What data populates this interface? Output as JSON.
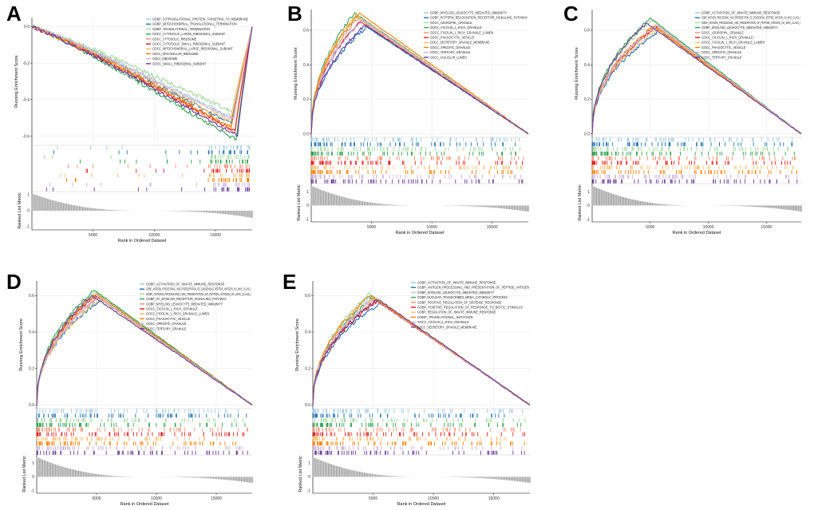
{
  "figure": {
    "background": "#ffffff"
  },
  "chart_data": [
    {
      "panel": "A",
      "type": "line",
      "subtype": "gsea-multi",
      "ylabel": "Running Enrichment Score",
      "xlabel": "Rank in Ordered Dataset",
      "metric_label": "Ranked List Metric",
      "xlim": [
        0,
        18000
      ],
      "ylim": [
        -0.65,
        0.05
      ],
      "yticks": [
        0.0,
        -0.2,
        -0.4,
        -0.6
      ],
      "yticklabels": [
        "0.0",
        "-0.2",
        "-0.4",
        "-0.6"
      ],
      "xticks": [
        5000,
        10000,
        15000
      ],
      "xticklabels": [
        "5000",
        "10000",
        "15000"
      ],
      "metric_ylim": [
        -1.2,
        1.2
      ],
      "metric_yticks": [
        1,
        0,
        -1
      ],
      "metric_yticklabels": [
        "1",
        "0",
        "-1"
      ],
      "series": [
        {
          "name": "GOBP_COTRANSLATIONAL_PROTEIN_TARGETING_TO_MEMBRANE",
          "color": "#9ecae1",
          "peak": -0.5,
          "peak_x": 16400
        },
        {
          "name": "GOBP_MITOCHONDRIAL_TRANSLATIONAL_TERMINATION",
          "color": "#2171b5",
          "peak": -0.53,
          "peak_x": 16300
        },
        {
          "name": "GOBP_TRANSLATIONAL_TERMINATION",
          "color": "#a1d99b",
          "peak": -0.47,
          "peak_x": 16500
        },
        {
          "name": "GOCC_CYTOSOLIC_LARGE_RIBOSOMAL_SUBUNIT",
          "color": "#31a354",
          "peak": -0.62,
          "peak_x": 16700
        },
        {
          "name": "GOCC_CYTOSOLIC_RIBOSOME",
          "color": "#fc9272",
          "peak": -0.58,
          "peak_x": 16600
        },
        {
          "name": "GOCC_CYTOSOLIC_SMALL_RIBOSOMAL_SUBUNIT",
          "color": "#e31a1c",
          "peak": -0.57,
          "peak_x": 16600
        },
        {
          "name": "GOCC_MITOCHONDRIAL_LARGE_RIBOSOMAL_SUBUNIT",
          "color": "#fdbf6f",
          "peak": -0.52,
          "peak_x": 16200
        },
        {
          "name": "GOCC_ORGANELLAR_RIBOSOME",
          "color": "#ff7f00",
          "peak": -0.55,
          "peak_x": 16300
        },
        {
          "name": "GOCC_RIBOSOME",
          "color": "#cab2d6",
          "peak": -0.51,
          "peak_x": 16500
        },
        {
          "name": "GOCC_SMALL_RIBOSOMAL_SUBUNIT",
          "color": "#6a3d9a",
          "peak": -0.6,
          "peak_x": 16800
        }
      ]
    },
    {
      "panel": "B",
      "type": "line",
      "subtype": "gsea-multi",
      "ylabel": "Running Enrichment Score",
      "xlabel": "Rank in Ordered Dataset",
      "metric_label": "Ranked List Metric",
      "xlim": [
        0,
        18000
      ],
      "ylim": [
        -0.02,
        0.72
      ],
      "yticks": [
        0.0,
        0.2,
        0.4,
        0.6
      ],
      "yticklabels": [
        "0.0",
        "0.2",
        "0.4",
        "0.6"
      ],
      "xticks": [
        5000,
        10000,
        15000
      ],
      "xticklabels": [
        "5000",
        "10000",
        "15000"
      ],
      "metric_ylim": [
        -1.2,
        1.6
      ],
      "metric_yticks": [
        1,
        0,
        -1
      ],
      "metric_yticklabels": [
        "1",
        "0",
        "-1"
      ],
      "series": [
        {
          "name": "GOBP_MYELOID_LEUKOCYTE_MEDIATED_IMMUNITY",
          "color": "#9ecae1",
          "peak": 0.66,
          "peak_x": 4200
        },
        {
          "name": "GOBP_PATTERN_RECOGNITION_RECEPTOR_SIGNALING_PATHWAY",
          "color": "#2171b5",
          "peak": 0.62,
          "peak_x": 4600
        },
        {
          "name": "GOCC_AZUROPHIL_GRANULE",
          "color": "#a1d99b",
          "peak": 0.68,
          "peak_x": 3800
        },
        {
          "name": "GOCC_FICOLIN_1_RICH_GRANULE",
          "color": "#31a354",
          "peak": 0.7,
          "peak_x": 3600
        },
        {
          "name": "GOCC_FICOLIN_1_RICH_GRANULE_LUMEN",
          "color": "#fc9272",
          "peak": 0.67,
          "peak_x": 3900
        },
        {
          "name": "GOCC_PHAGOCYTIC_VESICLE",
          "color": "#e31a1c",
          "peak": 0.65,
          "peak_x": 4100
        },
        {
          "name": "GOCC_SECRETORY_GRANULE_MEMBRANE",
          "color": "#fdbf6f",
          "peak": 0.69,
          "peak_x": 3700
        },
        {
          "name": "GOCC_SPECIFIC_GRANULE",
          "color": "#ff7f00",
          "peak": 0.7,
          "peak_x": 4000
        },
        {
          "name": "GOCC_TERTIARY_GRANULE",
          "color": "#cab2d6",
          "peak": 0.66,
          "peak_x": 4300
        },
        {
          "name": "GOCC_VACUOLAR_LUMEN",
          "color": "#6a3d9a",
          "peak": 0.63,
          "peak_x": 4500
        }
      ]
    },
    {
      "panel": "C",
      "type": "line",
      "subtype": "gsea-multi",
      "ylabel": "Running Enrichment Score",
      "xlabel": "Rank in Ordered Dataset",
      "metric_label": "Ranked List Metric",
      "xlim": [
        0,
        18000
      ],
      "ylim": [
        -0.02,
        0.72
      ],
      "yticks": [
        0.0,
        0.2,
        0.4,
        0.6
      ],
      "yticklabels": [
        "0.0",
        "0.2",
        "0.4",
        "0.6"
      ],
      "xticks": [
        5000,
        10000,
        15000
      ],
      "xticklabels": [
        "5000",
        "10000",
        "15000"
      ],
      "metric_ylim": [
        -1.2,
        1.6
      ],
      "metric_yticks": [
        1,
        0,
        -1
      ],
      "metric_yticklabels": [
        "1",
        "0",
        "-1"
      ],
      "series": [
        {
          "name": "GOBP_ACTIVATION_OF_INNATE_IMMUNE_RESPONSE",
          "color": "#9ecae1",
          "peak": 0.62,
          "peak_x": 5600
        },
        {
          "name": "GOBP_ANTIGEN_PROCESSING_AND_PRESENTATION_OF_EXOGENOUS_PEPTIDE_ANTIGEN_VIA_MHC_CLASS_I",
          "color": "#2171b5",
          "peak": 0.6,
          "peak_x": 5800
        },
        {
          "name": "GOBP_ANTIGEN_PROCESSING_AND_PRESENTATION_OF_PEPTIDE_ANTIGEN_VIA_MHC_CLASS_I",
          "color": "#a1d99b",
          "peak": 0.66,
          "peak_x": 5200
        },
        {
          "name": "GOBP_MYELOID_LEUKOCYTE_MEDIATED_IMMUNITY",
          "color": "#31a354",
          "peak": 0.67,
          "peak_x": 5000
        },
        {
          "name": "GOCC_AZUROPHIL_GRANULE",
          "color": "#fc9272",
          "peak": 0.63,
          "peak_x": 5400
        },
        {
          "name": "GOCC_FICOLIN_1_RICH_GRANULE",
          "color": "#e31a1c",
          "peak": 0.62,
          "peak_x": 5500
        },
        {
          "name": "GOCC_FICOLIN_1_RICH_GRANULE_LUMEN",
          "color": "#fdbf6f",
          "peak": 0.61,
          "peak_x": 5700
        },
        {
          "name": "GOCC_PHAGOCYTIC_VESICLE",
          "color": "#ff7f00",
          "peak": 0.62,
          "peak_x": 5300
        },
        {
          "name": "GOCC_SPECIFIC_GRANULE",
          "color": "#cab2d6",
          "peak": 0.63,
          "peak_x": 5600
        },
        {
          "name": "GOCC_TERTIARY_GRANULE",
          "color": "#6a3d9a",
          "peak": 0.64,
          "peak_x": 4700
        }
      ]
    },
    {
      "panel": "D",
      "type": "line",
      "subtype": "gsea-multi",
      "ylabel": "Running Enrichment Score",
      "xlabel": "Rank in Ordered Dataset",
      "metric_label": "Ranked List Metric",
      "xlim": [
        0,
        18000
      ],
      "ylim": [
        -0.02,
        0.68
      ],
      "yticks": [
        0.0,
        0.2,
        0.4,
        0.6
      ],
      "yticklabels": [
        "0.0",
        "0.2",
        "0.4",
        "0.6"
      ],
      "xticks": [
        5000,
        10000,
        15000
      ],
      "xticklabels": [
        "5000",
        "10000",
        "15000"
      ],
      "metric_ylim": [
        -1.2,
        1.6
      ],
      "metric_yticks": [
        1,
        0,
        -1
      ],
      "metric_yticklabels": [
        "1",
        "0",
        "-1"
      ],
      "series": [
        {
          "name": "GOBP_ACTIVATION_OF_INNATE_IMMUNE_RESPONSE",
          "color": "#9ecae1",
          "peak": 0.6,
          "peak_x": 5200
        },
        {
          "name": "GOBP_ANTIGEN_PROCESSING_AND_PRESENTATION_OF_EXOGENOUS_PEPTIDE_ANTIGEN_VIA_MHC_CLASS_I",
          "color": "#2171b5",
          "peak": 0.58,
          "peak_x": 5400
        },
        {
          "name": "GOBP_ANTIGEN_PROCESSING_AND_PRESENTATION_OF_PEPTIDE_ANTIGEN_VIA_MHC_CLASS_I",
          "color": "#a1d99b",
          "peak": 0.62,
          "peak_x": 5000
        },
        {
          "name": "GOBP_FC_EPSILON_RECEPTOR_SIGNALING_PATHWAY",
          "color": "#31a354",
          "peak": 0.63,
          "peak_x": 4800
        },
        {
          "name": "GOBP_MYELOID_LEUKOCYTE_MEDIATED_IMMUNITY",
          "color": "#fc9272",
          "peak": 0.59,
          "peak_x": 5100
        },
        {
          "name": "GOCC_FICOLIN_1_RICH_GRANULE",
          "color": "#e31a1c",
          "peak": 0.6,
          "peak_x": 4900
        },
        {
          "name": "GOCC_FICOLIN_1_RICH_GRANULE_LUMEN",
          "color": "#fdbf6f",
          "peak": 0.58,
          "peak_x": 5300
        },
        {
          "name": "GOCC_PHAGOCYTIC_VESICLE",
          "color": "#ff7f00",
          "peak": 0.61,
          "peak_x": 5000
        },
        {
          "name": "GOCC_SPECIFIC_GRANULE",
          "color": "#cab2d6",
          "peak": 0.59,
          "peak_x": 5200
        },
        {
          "name": "GOCC_TERTIARY_GRANULE",
          "color": "#6a3d9a",
          "peak": 0.6,
          "peak_x": 4600
        }
      ]
    },
    {
      "panel": "E",
      "type": "line",
      "subtype": "gsea-multi",
      "ylabel": "Running Enrichment Score",
      "xlabel": "Rank in Ordered Dataset",
      "metric_label": "Ranked List Metric",
      "xlim": [
        0,
        18000
      ],
      "ylim": [
        -0.02,
        0.68
      ],
      "yticks": [
        0.0,
        0.2,
        0.4,
        0.6
      ],
      "yticklabels": [
        "0.0",
        "0.2",
        "0.4",
        "0.6"
      ],
      "xticks": [
        5000,
        10000,
        15000
      ],
      "xticklabels": [
        "5000",
        "10000",
        "15000"
      ],
      "metric_ylim": [
        -1.2,
        1.6
      ],
      "metric_yticks": [
        1,
        0,
        -1
      ],
      "metric_yticklabels": [
        "1",
        "0",
        "-1"
      ],
      "series": [
        {
          "name": "GOBP_ACTIVATION_OF_INNATE_IMMUNE_RESPONSE",
          "color": "#9ecae1",
          "peak": 0.6,
          "peak_x": 4900
        },
        {
          "name": "GOBP_ANTIGEN_PROCESSING_AND_PRESENTATION_OF_PEPTIDE_ANTIGEN",
          "color": "#2171b5",
          "peak": 0.56,
          "peak_x": 5600
        },
        {
          "name": "GOBP_MYELOID_LEUKOCYTE_MEDIATED_IMMUNITY",
          "color": "#a1d99b",
          "peak": 0.61,
          "peak_x": 4700
        },
        {
          "name": "GOBP_NUCLEAR_TRANSCRIBED_MRNA_CATABOLIC_PROCESS",
          "color": "#31a354",
          "peak": 0.59,
          "peak_x": 5000
        },
        {
          "name": "GOBP_POSITIVE_REGULATION_OF_DEFENSE_RESPONSE",
          "color": "#fc9272",
          "peak": 0.58,
          "peak_x": 5200
        },
        {
          "name": "GOBP_POSITIVE_REGULATION_OF_RESPONSE_TO_BIOTIC_STIMULUS",
          "color": "#e31a1c",
          "peak": 0.57,
          "peak_x": 5300
        },
        {
          "name": "GOBP_REGULATION_OF_INNATE_IMMUNE_RESPONSE",
          "color": "#fdbf6f",
          "peak": 0.59,
          "peak_x": 5100
        },
        {
          "name": "GOBP_TRANSLATIONAL_INITIATION",
          "color": "#ff7f00",
          "peak": 0.6,
          "peak_x": 4800
        },
        {
          "name": "GOCC_FICOLIN_1_RICH_GRANULE",
          "color": "#cab2d6",
          "peak": 0.58,
          "peak_x": 5000
        },
        {
          "name": "GOCC_SECRETORY_GRANULE_MEMBRANE",
          "color": "#6a3d9a",
          "peak": 0.58,
          "peak_x": 5400
        }
      ]
    }
  ]
}
